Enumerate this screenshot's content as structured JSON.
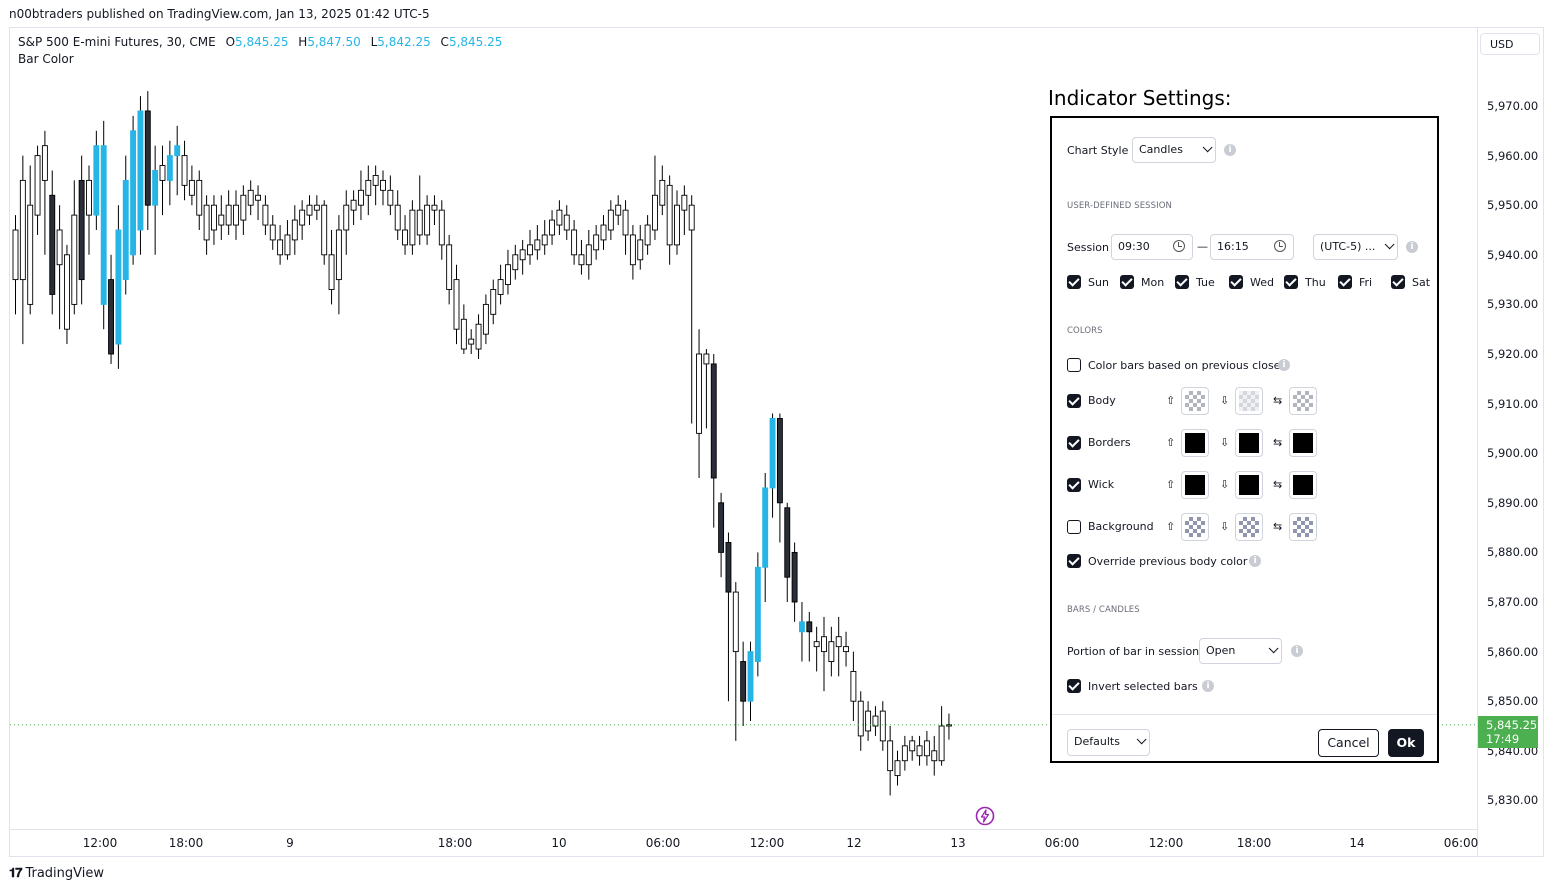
{
  "publisher_line": "n00btraders published on TradingView.com, Jan 13, 2025 01:42 UTC-5",
  "legend": {
    "symbol": "S&P 500 E-mini Futures, 30, CME",
    "o_key": "O",
    "o_val": "5,845.25",
    "h_key": "H",
    "h_val": "5,847.50",
    "l_key": "L",
    "l_val": "5,842.25",
    "c_key": "C",
    "c_val": "5,845.25",
    "indicator": "Bar Color"
  },
  "currency": "USD",
  "price_axis": [
    "5,970.00",
    "5,960.00",
    "5,950.00",
    "5,940.00",
    "5,930.00",
    "5,920.00",
    "5,910.00",
    "5,900.00",
    "5,890.00",
    "5,880.00",
    "5,870.00",
    "5,860.00",
    "5,850.00",
    "5,840.00",
    "5,830.00"
  ],
  "time_axis": [
    "12:00",
    "18:00",
    "9",
    "18:00",
    "10",
    "06:00",
    "12:00",
    "12",
    "13",
    "06:00",
    "12:00",
    "18:00",
    "14",
    "06:00"
  ],
  "last_price": {
    "price": "5,845.25",
    "countdown": "17:49"
  },
  "footer_brand": "TradingView",
  "colors": {
    "up_highlight": "#26b5e6",
    "down_highlight": "#2a2e39",
    "last_price_bg": "#4caf50"
  },
  "settings": {
    "title": "Indicator Settings:",
    "chart_style_label": "Chart Style",
    "chart_style_value": "Candles",
    "session_section": "USER-DEFINED SESSION",
    "session_label": "Session",
    "session_start": "09:30",
    "session_dash": "—",
    "session_end": "16:15",
    "timezone": "(UTC-5) ...",
    "days": [
      {
        "label": "Sun",
        "checked": true
      },
      {
        "label": "Mon",
        "checked": true
      },
      {
        "label": "Tue",
        "checked": true
      },
      {
        "label": "Wed",
        "checked": true
      },
      {
        "label": "Thu",
        "checked": true
      },
      {
        "label": "Fri",
        "checked": true
      },
      {
        "label": "Sat",
        "checked": true
      }
    ],
    "colors_section": "COLORS",
    "color_prev_close": "Color bars based on previous close",
    "body_label": "Body",
    "borders_label": "Borders",
    "wick_label": "Wick",
    "background_label": "Background",
    "override_label": "Override previous body color",
    "bars_section": "BARS / CANDLES",
    "portion_label": "Portion of bar in session",
    "portion_value": "Open",
    "invert_label": "Invert selected bars",
    "defaults_label": "Defaults",
    "cancel_label": "Cancel",
    "ok_label": "Ok",
    "up_arrow": "⇧",
    "down_arrow": "⇩",
    "swap_arrow": "⇆"
  },
  "candles": [
    [
      5945,
      5935,
      5948,
      5928,
      "n"
    ],
    [
      5935,
      5955,
      5960,
      5922,
      "n"
    ],
    [
      5930,
      5950,
      5958,
      5928,
      "n"
    ],
    [
      5948,
      5960,
      5962,
      5944,
      "n"
    ],
    [
      5955,
      5962,
      5965,
      5940,
      "n"
    ],
    [
      5952,
      5932,
      5957,
      5928,
      "d"
    ],
    [
      5945,
      5938,
      5950,
      5925,
      "n"
    ],
    [
      5940,
      5925,
      5942,
      5922,
      "n"
    ],
    [
      5930,
      5948,
      5955,
      5928,
      "n"
    ],
    [
      5935,
      5955,
      5960,
      5930,
      "d"
    ],
    [
      5955,
      5948,
      5958,
      5940,
      "n"
    ],
    [
      5948,
      5962,
      5965,
      5945,
      "u"
    ],
    [
      5930,
      5962,
      5967,
      5925,
      "u"
    ],
    [
      5920,
      5935,
      5940,
      5918,
      "d"
    ],
    [
      5922,
      5945,
      5950,
      5917,
      "u"
    ],
    [
      5935,
      5955,
      5960,
      5932,
      "u"
    ],
    [
      5940,
      5965,
      5968,
      5938,
      "u"
    ],
    [
      5945,
      5969,
      5972,
      5940,
      "u"
    ],
    [
      5950,
      5969,
      5973,
      5945,
      "d"
    ],
    [
      5950,
      5957,
      5962,
      5940,
      "u"
    ],
    [
      5955,
      5958,
      5962,
      5948,
      "n"
    ],
    [
      5955,
      5960,
      5963,
      5950,
      "u"
    ],
    [
      5960,
      5962,
      5966,
      5952,
      "u"
    ],
    [
      5960,
      5954,
      5963,
      5951,
      "n"
    ],
    [
      5955,
      5952,
      5958,
      5950,
      "n"
    ],
    [
      5955,
      5948,
      5957,
      5945,
      "n"
    ],
    [
      5950,
      5943,
      5952,
      5940,
      "n"
    ],
    [
      5945,
      5950,
      5952,
      5942,
      "n"
    ],
    [
      5948,
      5946,
      5952,
      5943,
      "n"
    ],
    [
      5946,
      5950,
      5953,
      5944,
      "n"
    ],
    [
      5950,
      5946,
      5953,
      5943,
      "n"
    ],
    [
      5947,
      5952,
      5954,
      5944,
      "n"
    ],
    [
      5950,
      5953,
      5955,
      5948,
      "n"
    ],
    [
      5952,
      5951,
      5954,
      5947,
      "n"
    ],
    [
      5950,
      5946,
      5952,
      5944,
      "n"
    ],
    [
      5946,
      5943,
      5948,
      5941,
      "n"
    ],
    [
      5943,
      5940,
      5946,
      5938,
      "n"
    ],
    [
      5940,
      5944,
      5947,
      5939,
      "n"
    ],
    [
      5943,
      5947,
      5950,
      5940,
      "n"
    ],
    [
      5946,
      5949,
      5951,
      5943,
      "n"
    ],
    [
      5948,
      5950,
      5952,
      5946,
      "n"
    ],
    [
      5949,
      5950,
      5952,
      5947,
      "n"
    ],
    [
      5950,
      5940,
      5951,
      5938,
      "n"
    ],
    [
      5940,
      5933,
      5945,
      5930,
      "n"
    ],
    [
      5935,
      5945,
      5948,
      5928,
      "n"
    ],
    [
      5945,
      5950,
      5953,
      5940,
      "n"
    ],
    [
      5949,
      5951,
      5953,
      5946,
      "n"
    ],
    [
      5950,
      5953,
      5957,
      5947,
      "n"
    ],
    [
      5952,
      5955,
      5958,
      5948,
      "n"
    ],
    [
      5954,
      5956,
      5958,
      5950,
      "n"
    ],
    [
      5955,
      5953,
      5957,
      5950,
      "n"
    ],
    [
      5953,
      5950,
      5956,
      5948,
      "n"
    ],
    [
      5950,
      5945,
      5953,
      5943,
      "n"
    ],
    [
      5945,
      5942,
      5948,
      5940,
      "n"
    ],
    [
      5942,
      5949,
      5951,
      5940,
      "n"
    ],
    [
      5949,
      5944,
      5956,
      5942,
      "n"
    ],
    [
      5944,
      5950,
      5952,
      5942,
      "n"
    ],
    [
      5950,
      5949,
      5952,
      5946,
      "n"
    ],
    [
      5949,
      5942,
      5951,
      5939,
      "n"
    ],
    [
      5942,
      5933,
      5944,
      5930,
      "n"
    ],
    [
      5935,
      5925,
      5938,
      5922,
      "n"
    ],
    [
      5927,
      5921,
      5930,
      5920,
      "n"
    ],
    [
      5923,
      5922,
      5925,
      5920,
      "n"
    ],
    [
      5921,
      5926,
      5928,
      5919,
      "n"
    ],
    [
      5924,
      5930,
      5932,
      5922,
      "n"
    ],
    [
      5928,
      5933,
      5935,
      5926,
      "n"
    ],
    [
      5932,
      5935,
      5938,
      5930,
      "n"
    ],
    [
      5934,
      5938,
      5941,
      5932,
      "n"
    ],
    [
      5937,
      5940,
      5942,
      5935,
      "n"
    ],
    [
      5939,
      5941,
      5943,
      5936,
      "n"
    ],
    [
      5940,
      5942,
      5945,
      5938,
      "n"
    ],
    [
      5941,
      5943,
      5946,
      5939,
      "n"
    ],
    [
      5942,
      5944,
      5947,
      5940,
      "n"
    ],
    [
      5944,
      5947,
      5949,
      5942,
      "n"
    ],
    [
      5946,
      5949,
      5951,
      5944,
      "n"
    ],
    [
      5948,
      5945,
      5950,
      5943,
      "n"
    ],
    [
      5945,
      5940,
      5947,
      5938,
      "n"
    ],
    [
      5940,
      5938,
      5943,
      5936,
      "n"
    ],
    [
      5938,
      5942,
      5945,
      5935,
      "n"
    ],
    [
      5941,
      5944,
      5946,
      5939,
      "n"
    ],
    [
      5943,
      5946,
      5948,
      5941,
      "n"
    ],
    [
      5945,
      5949,
      5951,
      5943,
      "n"
    ],
    [
      5948,
      5950,
      5952,
      5946,
      "n"
    ],
    [
      5949,
      5944,
      5951,
      5940,
      "n"
    ],
    [
      5944,
      5938,
      5946,
      5935,
      "n"
    ],
    [
      5939,
      5943,
      5946,
      5937,
      "n"
    ],
    [
      5942,
      5946,
      5948,
      5940,
      "n"
    ],
    [
      5945,
      5952,
      5960,
      5943,
      "n"
    ],
    [
      5950,
      5955,
      5958,
      5948,
      "n"
    ],
    [
      5954,
      5942,
      5956,
      5938,
      "n"
    ],
    [
      5942,
      5950,
      5953,
      5940,
      "n"
    ],
    [
      5949,
      5952,
      5954,
      5944,
      "n"
    ],
    [
      5950,
      5945,
      5952,
      5906,
      "n"
    ],
    [
      5904,
      5920,
      5925,
      5895,
      "n"
    ],
    [
      5920,
      5918,
      5921,
      5905,
      "n"
    ],
    [
      5918,
      5895,
      5920,
      5885,
      "d"
    ],
    [
      5890,
      5880,
      5892,
      5875,
      "d"
    ],
    [
      5882,
      5872,
      5884,
      5850,
      "d"
    ],
    [
      5872,
      5860,
      5874,
      5842,
      "n"
    ],
    [
      5858,
      5850,
      5862,
      5845,
      "d"
    ],
    [
      5850,
      5860,
      5862,
      5846,
      "u"
    ],
    [
      5858,
      5877,
      5880,
      5855,
      "u"
    ],
    [
      5877,
      5893,
      5896,
      5870,
      "u"
    ],
    [
      5893,
      5907,
      5908,
      5887,
      "u"
    ],
    [
      5907,
      5890,
      5908,
      5882,
      "d"
    ],
    [
      5889,
      5875,
      5890,
      5870,
      "d"
    ],
    [
      5880,
      5870,
      5882,
      5866,
      "d"
    ],
    [
      5864,
      5866,
      5870,
      5858,
      "u"
    ],
    [
      5864,
      5866,
      5868,
      5858,
      "d"
    ],
    [
      5862,
      5861,
      5865,
      5856,
      "n"
    ],
    [
      5860,
      5863,
      5867,
      5852,
      "n"
    ],
    [
      5862,
      5858,
      5865,
      5855,
      "n"
    ],
    [
      5861,
      5863,
      5867,
      5855,
      "n"
    ],
    [
      5861,
      5860,
      5864,
      5857,
      "n"
    ],
    [
      5856,
      5850,
      5860,
      5846,
      "n"
    ],
    [
      5850,
      5843,
      5852,
      5840,
      "n"
    ],
    [
      5848,
      5844,
      5850,
      5842,
      "n"
    ],
    [
      5845,
      5847,
      5849,
      5843,
      "n"
    ],
    [
      5848,
      5842,
      5850,
      5840,
      "n"
    ],
    [
      5842,
      5836,
      5845,
      5831,
      "n"
    ],
    [
      5835,
      5838,
      5840,
      5833,
      "n"
    ],
    [
      5838,
      5841,
      5843,
      5836,
      "n"
    ],
    [
      5840,
      5842,
      5843,
      5838,
      "n"
    ],
    [
      5841,
      5839,
      5843,
      5837,
      "n"
    ],
    [
      5839,
      5842,
      5844,
      5837,
      "n"
    ],
    [
      5840,
      5838,
      5843,
      5835,
      "n"
    ],
    [
      5838,
      5845,
      5849,
      5837,
      "n"
    ],
    [
      5845,
      5845.25,
      5847.5,
      5842.25,
      "n"
    ]
  ]
}
